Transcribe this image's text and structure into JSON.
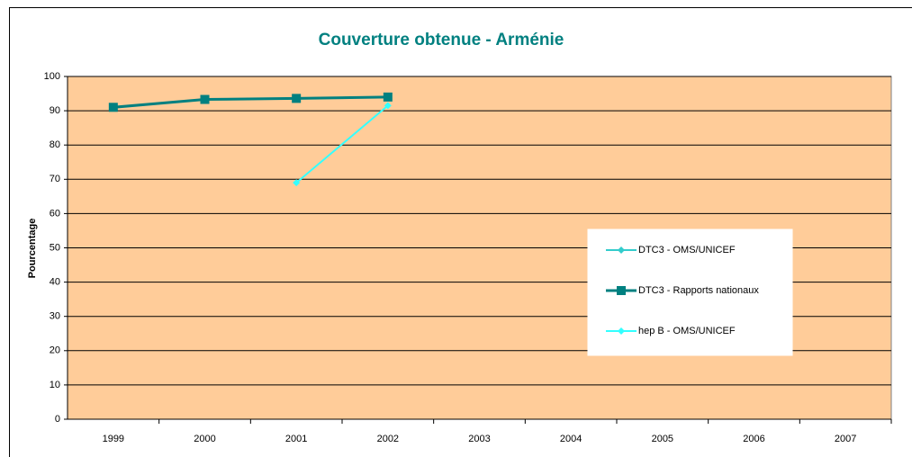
{
  "chart_data": {
    "type": "line",
    "title": "Couverture obtenue - Arménie",
    "y_label": "Pourcentage",
    "categories": [
      "1999",
      "2000",
      "2001",
      "2002",
      "2003",
      "2004",
      "2005",
      "2006",
      "2007"
    ],
    "series": [
      {
        "name": "DTC3 - OMS/UNICEF",
        "color": "#33cccc",
        "marker": "diamond",
        "values": [
          null,
          null,
          null,
          null,
          null,
          null,
          null,
          null,
          null
        ]
      },
      {
        "name": "DTC3 - Rapports nationaux",
        "color": "#008080",
        "marker": "square",
        "values": [
          91,
          93.3,
          93.6,
          94,
          null,
          null,
          null,
          null,
          null
        ]
      },
      {
        "name": "hep B - OMS/UNICEF",
        "color": "#33ffff",
        "marker": "diamond",
        "values": [
          null,
          null,
          69,
          91.5,
          null,
          null,
          null,
          null,
          null
        ]
      }
    ],
    "ylim": [
      0,
      100
    ],
    "yticks": [
      0,
      10,
      20,
      30,
      40,
      50,
      60,
      70,
      80,
      90,
      100
    ],
    "grid": true,
    "plot_background": "#ffcc99"
  }
}
